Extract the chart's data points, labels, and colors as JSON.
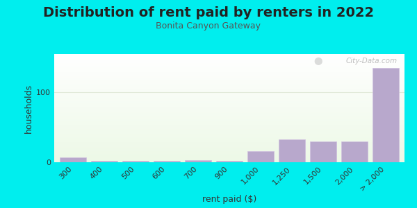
{
  "title": "Distribution of rent paid by renters in 2022",
  "subtitle": "Bonita Canyon Gateway",
  "xlabel": "rent paid ($)",
  "ylabel": "households",
  "background_color": "#00EEEE",
  "bar_color": "#b8a8cc",
  "categories": [
    "300",
    "400",
    "500",
    "600",
    "700",
    "900",
    "1,000",
    "1,250",
    "1,500",
    "2,000",
    "> 2,000"
  ],
  "values": [
    7,
    2,
    2,
    2,
    3,
    2,
    16,
    33,
    30,
    30,
    135
  ],
  "yticks": [
    0,
    100
  ],
  "ylim": [
    0,
    155
  ],
  "title_fontsize": 14,
  "subtitle_fontsize": 9,
  "label_fontsize": 9,
  "tick_fontsize": 8,
  "watermark": "City-Data.com"
}
